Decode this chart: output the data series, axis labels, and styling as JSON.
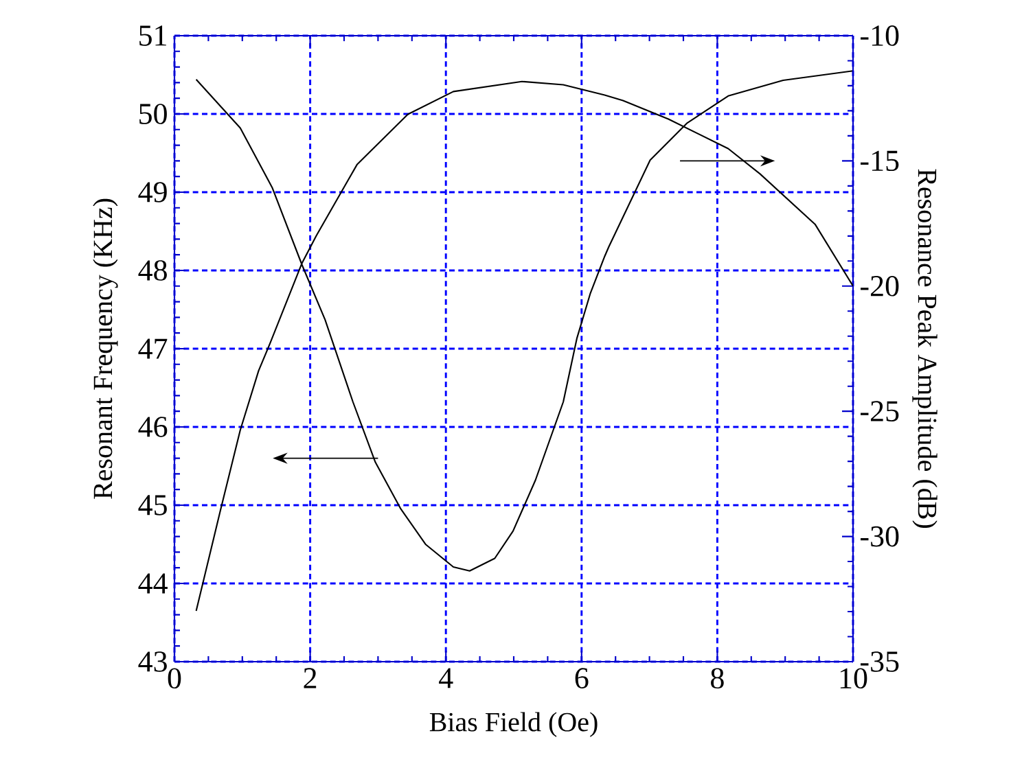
{
  "chart_data": {
    "type": "line",
    "xlabel": "Bias Field (Oe)",
    "ylabel": "Resonant Frequency (KHz)",
    "y2label": "Resonance Peak Amplitude (dB)",
    "xlim": [
      0,
      10
    ],
    "xticks": [
      0,
      2,
      4,
      6,
      8,
      10
    ],
    "ylim": [
      43,
      51
    ],
    "yticks": [
      43,
      44,
      45,
      46,
      47,
      48,
      49,
      50,
      51
    ],
    "y2lim": [
      -35,
      -10
    ],
    "y2ticks": [
      -35,
      -30,
      -25,
      -20,
      -15,
      -10
    ],
    "grid": true,
    "series": [
      {
        "color": "#000000",
        "x": [
          0.32,
          0.97,
          1.44,
          1.88,
          2.22,
          2.63,
          2.96,
          3.33,
          3.7,
          4.11,
          4.35,
          4.72,
          4.99,
          5.32,
          5.73,
          5.93,
          6.13,
          6.34,
          6.4,
          7.01,
          7.55,
          8.16,
          8.97,
          10
        ],
        "values": [
          50.44,
          49.82,
          49.06,
          48.07,
          47.37,
          46.32,
          45.55,
          44.96,
          44.5,
          44.21,
          44.16,
          44.32,
          44.67,
          45.32,
          46.32,
          47.13,
          47.71,
          48.18,
          48.3,
          49.41,
          49.88,
          50.23,
          50.43,
          50.55
        ]
      },
      {
        "color": "#000000",
        "axis": "y2",
        "x": [
          0.32,
          0.67,
          0.97,
          1.24,
          1.41,
          1.88,
          2.09,
          2.69,
          3.44,
          4.11,
          5.12,
          5.73,
          6.34,
          6.61,
          7.28,
          8.16,
          8.63,
          9.44,
          10
        ],
        "values": [
          -32.97,
          -29.04,
          -25.75,
          -23.38,
          -22.28,
          -19.08,
          -17.99,
          -15.15,
          -13.14,
          -12.23,
          -11.83,
          -11.96,
          -12.37,
          -12.59,
          -13.33,
          -14.51,
          -15.52,
          -17.53,
          -20.0
        ]
      }
    ]
  }
}
